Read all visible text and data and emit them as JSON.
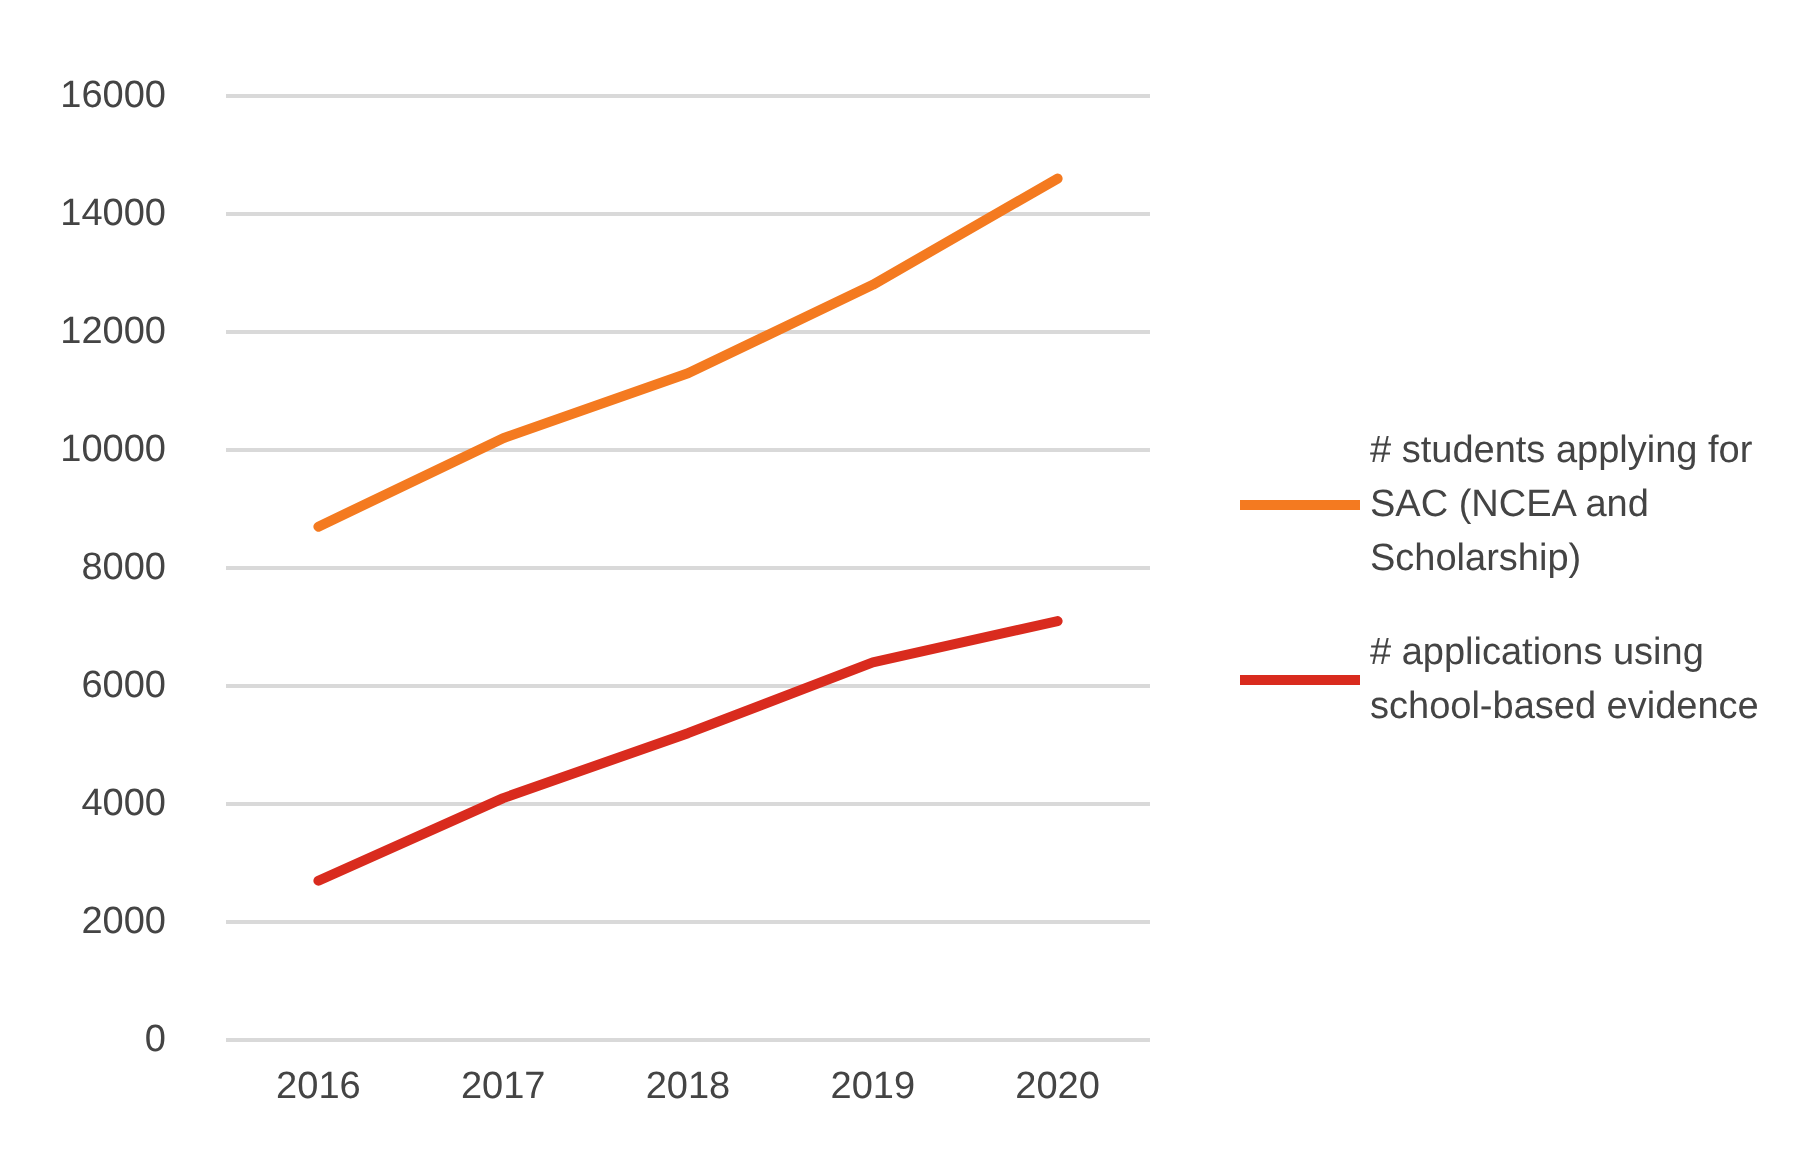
{
  "chart_data": {
    "type": "line",
    "categories": [
      "2016",
      "2017",
      "2018",
      "2019",
      "2020"
    ],
    "series": [
      {
        "name": "# students applying for SAC (NCEA and Scholarship)",
        "color": "#f47a20",
        "values": [
          8700,
          10200,
          11300,
          12800,
          14600
        ]
      },
      {
        "name": "# applications using school-based evidence",
        "color": "#d92b1e",
        "values": [
          2700,
          4100,
          5200,
          6400,
          7100
        ]
      }
    ],
    "ylim": [
      0,
      16000
    ],
    "yticks": [
      0,
      2000,
      4000,
      6000,
      8000,
      10000,
      12000,
      14000,
      16000
    ],
    "grid": "y",
    "legend": "right",
    "marker": "none",
    "line_style": "solid"
  }
}
